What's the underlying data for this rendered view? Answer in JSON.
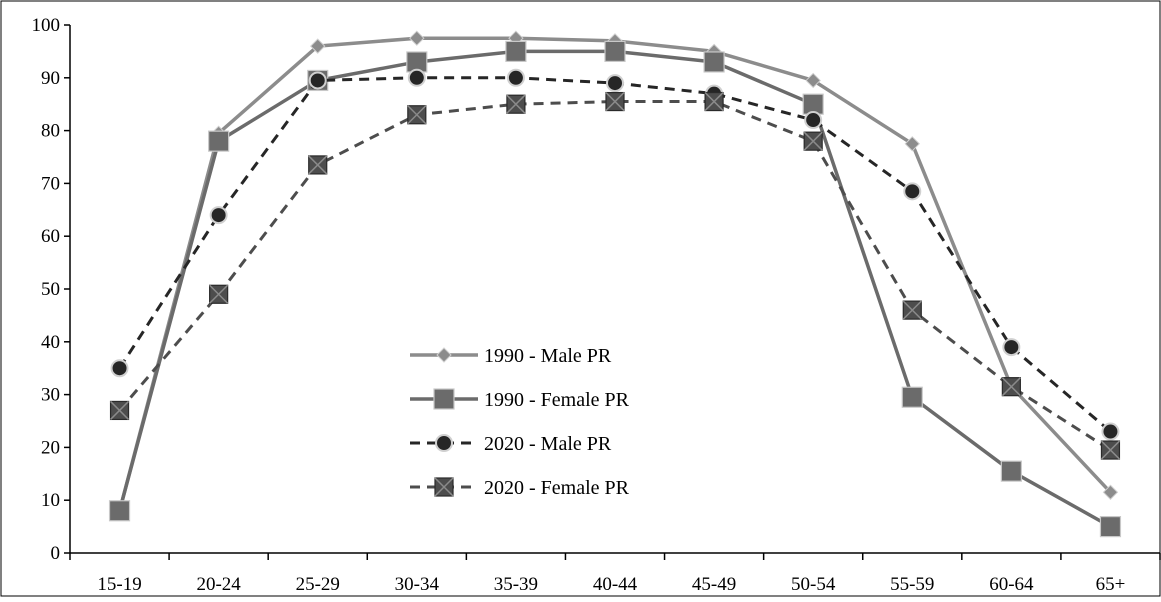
{
  "chart_data": {
    "type": "line",
    "title": "",
    "xlabel": "",
    "ylabel": "",
    "categories": [
      "15-19",
      "20-24",
      "25-29",
      "30-34",
      "35-39",
      "40-44",
      "45-49",
      "50-54",
      "55-59",
      "60-64",
      "65+"
    ],
    "ylim": [
      0,
      100
    ],
    "yticks": [
      0,
      10,
      20,
      30,
      40,
      50,
      60,
      70,
      80,
      90,
      100
    ],
    "grid": false,
    "legend_position": "center",
    "series": [
      {
        "name": "1990 - Male PR",
        "values": [
          8,
          79.5,
          96,
          97.5,
          97.5,
          97,
          95,
          89.5,
          77.5,
          31.5,
          11.5
        ],
        "color": "#8c8c8c",
        "marker": "diamond",
        "dashed": false
      },
      {
        "name": "1990 - Female PR",
        "values": [
          8,
          78,
          89.5,
          93,
          95,
          95,
          93,
          85,
          29.5,
          15.5,
          5
        ],
        "color": "#6b6b6b",
        "marker": "square",
        "dashed": false
      },
      {
        "name": "2020 - Male PR",
        "values": [
          35,
          64,
          89.5,
          90,
          90,
          89,
          87,
          82,
          68.5,
          39,
          23
        ],
        "color": "#262626",
        "marker": "circle",
        "dashed": true
      },
      {
        "name": "2020 - Female PR",
        "values": [
          27,
          49,
          73.5,
          83,
          85,
          85.5,
          85.5,
          78,
          46,
          31.5,
          19.5
        ],
        "color": "#4d4d4d",
        "marker": "xsquare",
        "dashed": true
      }
    ]
  }
}
